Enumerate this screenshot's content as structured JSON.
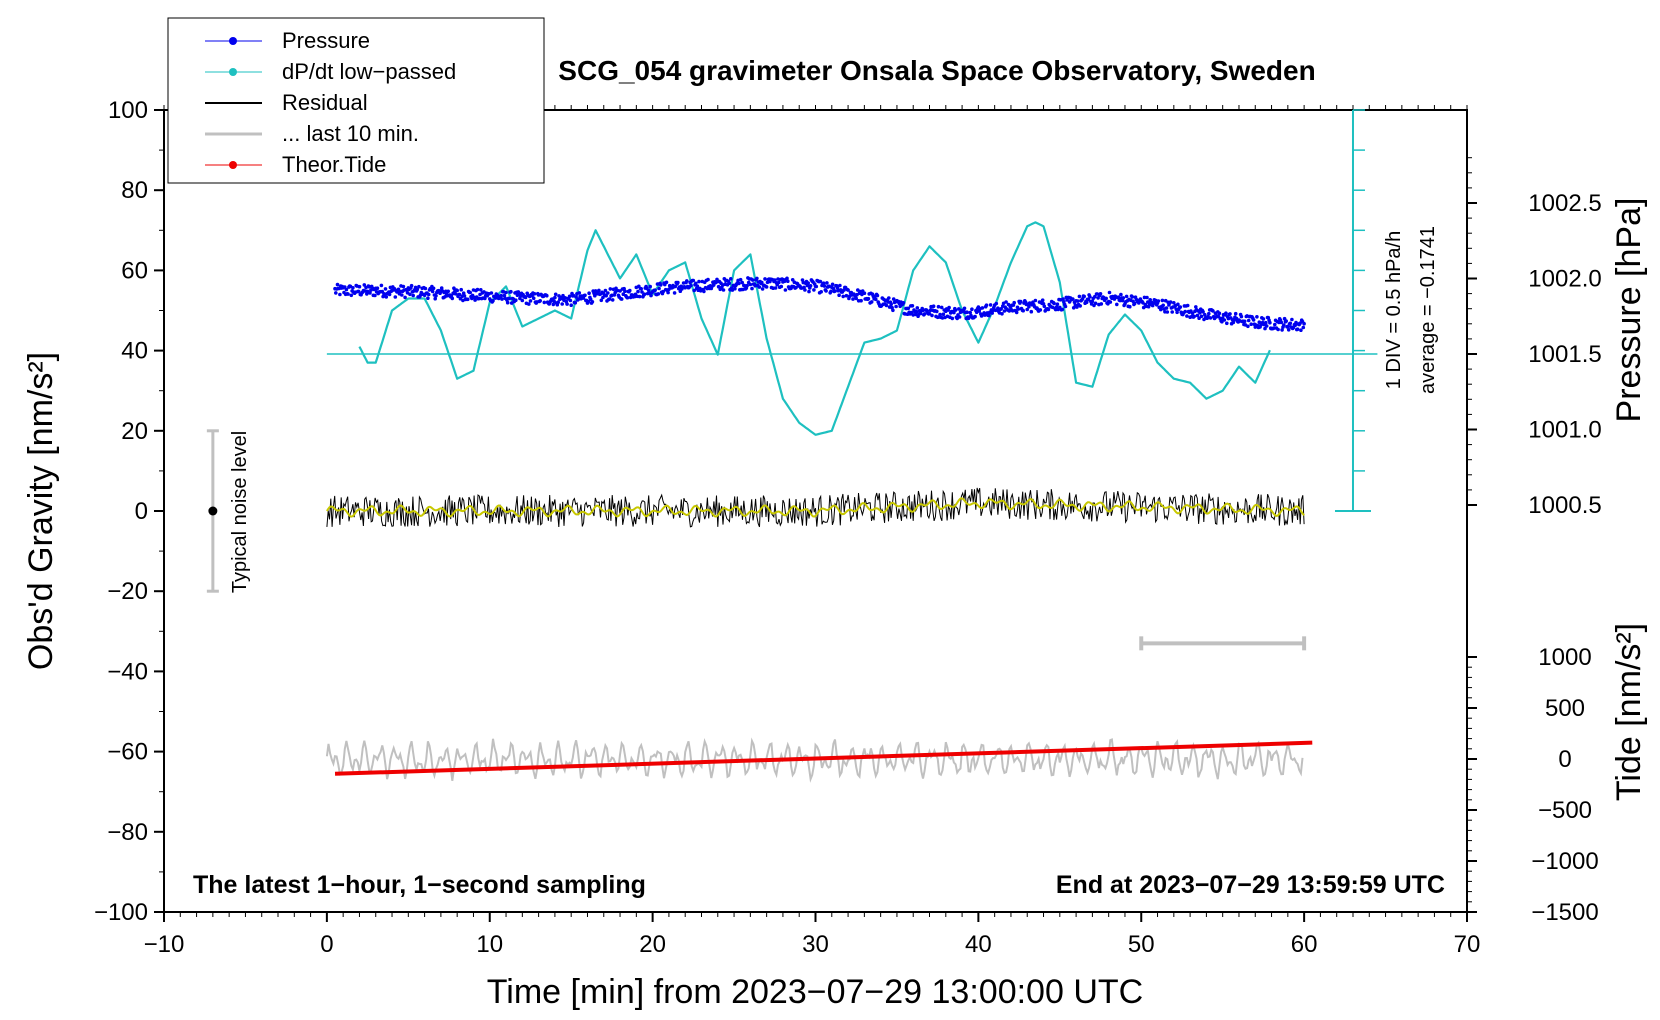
{
  "chart_data": {
    "type": "line",
    "title": "SCG_054 gravimeter Onsala Space Observatory, Sweden",
    "xlabel": "Time [min] from 2023−07−29 13:00:00 UTC",
    "ylabel_left": "Obs'd Gravity [nm/s²]",
    "ylabel_right_pressure": "Pressure [hPa]",
    "ylabel_right_tide": "Tide [nm/s²]",
    "xlim": [
      -10,
      70
    ],
    "ylim": [
      -100,
      100
    ],
    "x_ticks": [
      "−10",
      "0",
      "10",
      "20",
      "30",
      "40",
      "50",
      "60",
      "70"
    ],
    "x_tick_values": [
      -10,
      0,
      10,
      20,
      30,
      40,
      50,
      60,
      70
    ],
    "y_ticks": [
      "100",
      "80",
      "60",
      "40",
      "20",
      "0",
      "−20",
      "−40",
      "−60",
      "−80",
      "−100"
    ],
    "y_tick_values": [
      100,
      80,
      60,
      40,
      20,
      0,
      -20,
      -40,
      -60,
      -80,
      -100
    ],
    "pressure_ticks": [
      "1002.5",
      "1002.0",
      "1001.5",
      "1001.0",
      "1000.5"
    ],
    "pressure_tick_values": [
      1002.5,
      1002.0,
      1001.5,
      1001.0,
      1000.5
    ],
    "pressure_axis_range": [
      1000.0,
      1003.0
    ],
    "tide_ticks": [
      "1000",
      "500",
      "0",
      "−500",
      "−1000",
      "−1500"
    ],
    "tide_tick_values": [
      1000,
      500,
      0,
      -500,
      -1000,
      -1500
    ],
    "tide_axis_range": [
      -1500,
      1000
    ],
    "legend": [
      {
        "label": "Pressure",
        "color": "#0000ee",
        "marker": true
      },
      {
        "label": "dP/dt low−passed",
        "color": "#1ec0c0",
        "marker": true
      },
      {
        "label": "Residual",
        "color": "#000000",
        "marker": false
      },
      {
        "label": "... last 10 min.",
        "color": "#c0c0c0",
        "marker": false
      },
      {
        "label": "Theor.Tide",
        "color": "#ee0000",
        "marker": true
      }
    ],
    "series": [
      {
        "name": "Pressure",
        "axis": "pressure",
        "x": [
          0.5,
          3,
          6,
          9,
          12,
          15,
          18,
          21,
          24,
          27,
          30,
          33,
          36,
          39,
          42,
          45,
          48,
          51,
          54,
          57,
          60
        ],
        "values": [
          1001.92,
          1001.92,
          1001.91,
          1001.89,
          1001.87,
          1001.86,
          1001.9,
          1001.94,
          1001.96,
          1001.97,
          1001.95,
          1001.88,
          1001.79,
          1001.77,
          1001.81,
          1001.83,
          1001.87,
          1001.83,
          1001.76,
          1001.71,
          1001.69
        ]
      },
      {
        "name": "dP/dt low−passed",
        "axis": "gravity",
        "x": [
          2,
          2.5,
          3,
          4,
          5,
          6,
          7,
          8,
          9,
          10,
          11,
          12,
          13,
          14,
          15,
          16,
          16.5,
          17,
          18,
          19,
          20,
          21,
          22,
          23,
          24,
          25,
          26,
          27,
          28,
          29,
          30,
          31,
          32,
          33,
          34,
          35,
          36,
          37,
          38,
          39,
          40,
          41,
          42,
          43,
          43.5,
          44,
          45,
          46,
          47,
          48,
          49,
          50,
          51,
          52,
          53,
          54,
          55,
          56,
          57,
          58
        ],
        "values": [
          41,
          37,
          37,
          50,
          53,
          53,
          45,
          33,
          35,
          52,
          56,
          46,
          48,
          50,
          48,
          65,
          70,
          66,
          58,
          64,
          54,
          60,
          62,
          48,
          39,
          60,
          64,
          43,
          28,
          22,
          19,
          20,
          31,
          42,
          43,
          45,
          60,
          66,
          62,
          50,
          42,
          51,
          62,
          71,
          72,
          71,
          57,
          32,
          31,
          44,
          49,
          45,
          37,
          33,
          32,
          28,
          30,
          36,
          32,
          41
        ]
      },
      {
        "name": "Residual",
        "axis": "gravity",
        "x": [
          0,
          10,
          20,
          30,
          40,
          50,
          60
        ],
        "values": [
          0,
          0,
          0,
          0,
          2,
          1,
          0
        ],
        "noise_amplitude": 4
      },
      {
        "name": "... last 10 min.",
        "axis": "gravity",
        "x": [
          0,
          60
        ],
        "values": [
          -62,
          -62
        ],
        "noise_amplitude": 5
      },
      {
        "name": "Theor.Tide",
        "axis": "tide",
        "x": [
          0.5,
          60.5
        ],
        "values": [
          -145,
          160
        ]
      }
    ],
    "pressure_reference_line": 1001.5,
    "noise_bar": {
      "x": -7,
      "center": 0,
      "low": -20,
      "high": 20,
      "label": "Typical noise level"
    },
    "last10_bar": {
      "x_start": 50,
      "x_end": 60,
      "y": -33
    },
    "dpdt_scale": {
      "label_div": "1 DIV = 0.5 hPa/h",
      "label_avg": "average = −0.1741"
    },
    "annotations": {
      "left": "The latest 1−hour, 1−second sampling",
      "right": "End at 2023−07−29 13:59:59 UTC"
    }
  }
}
